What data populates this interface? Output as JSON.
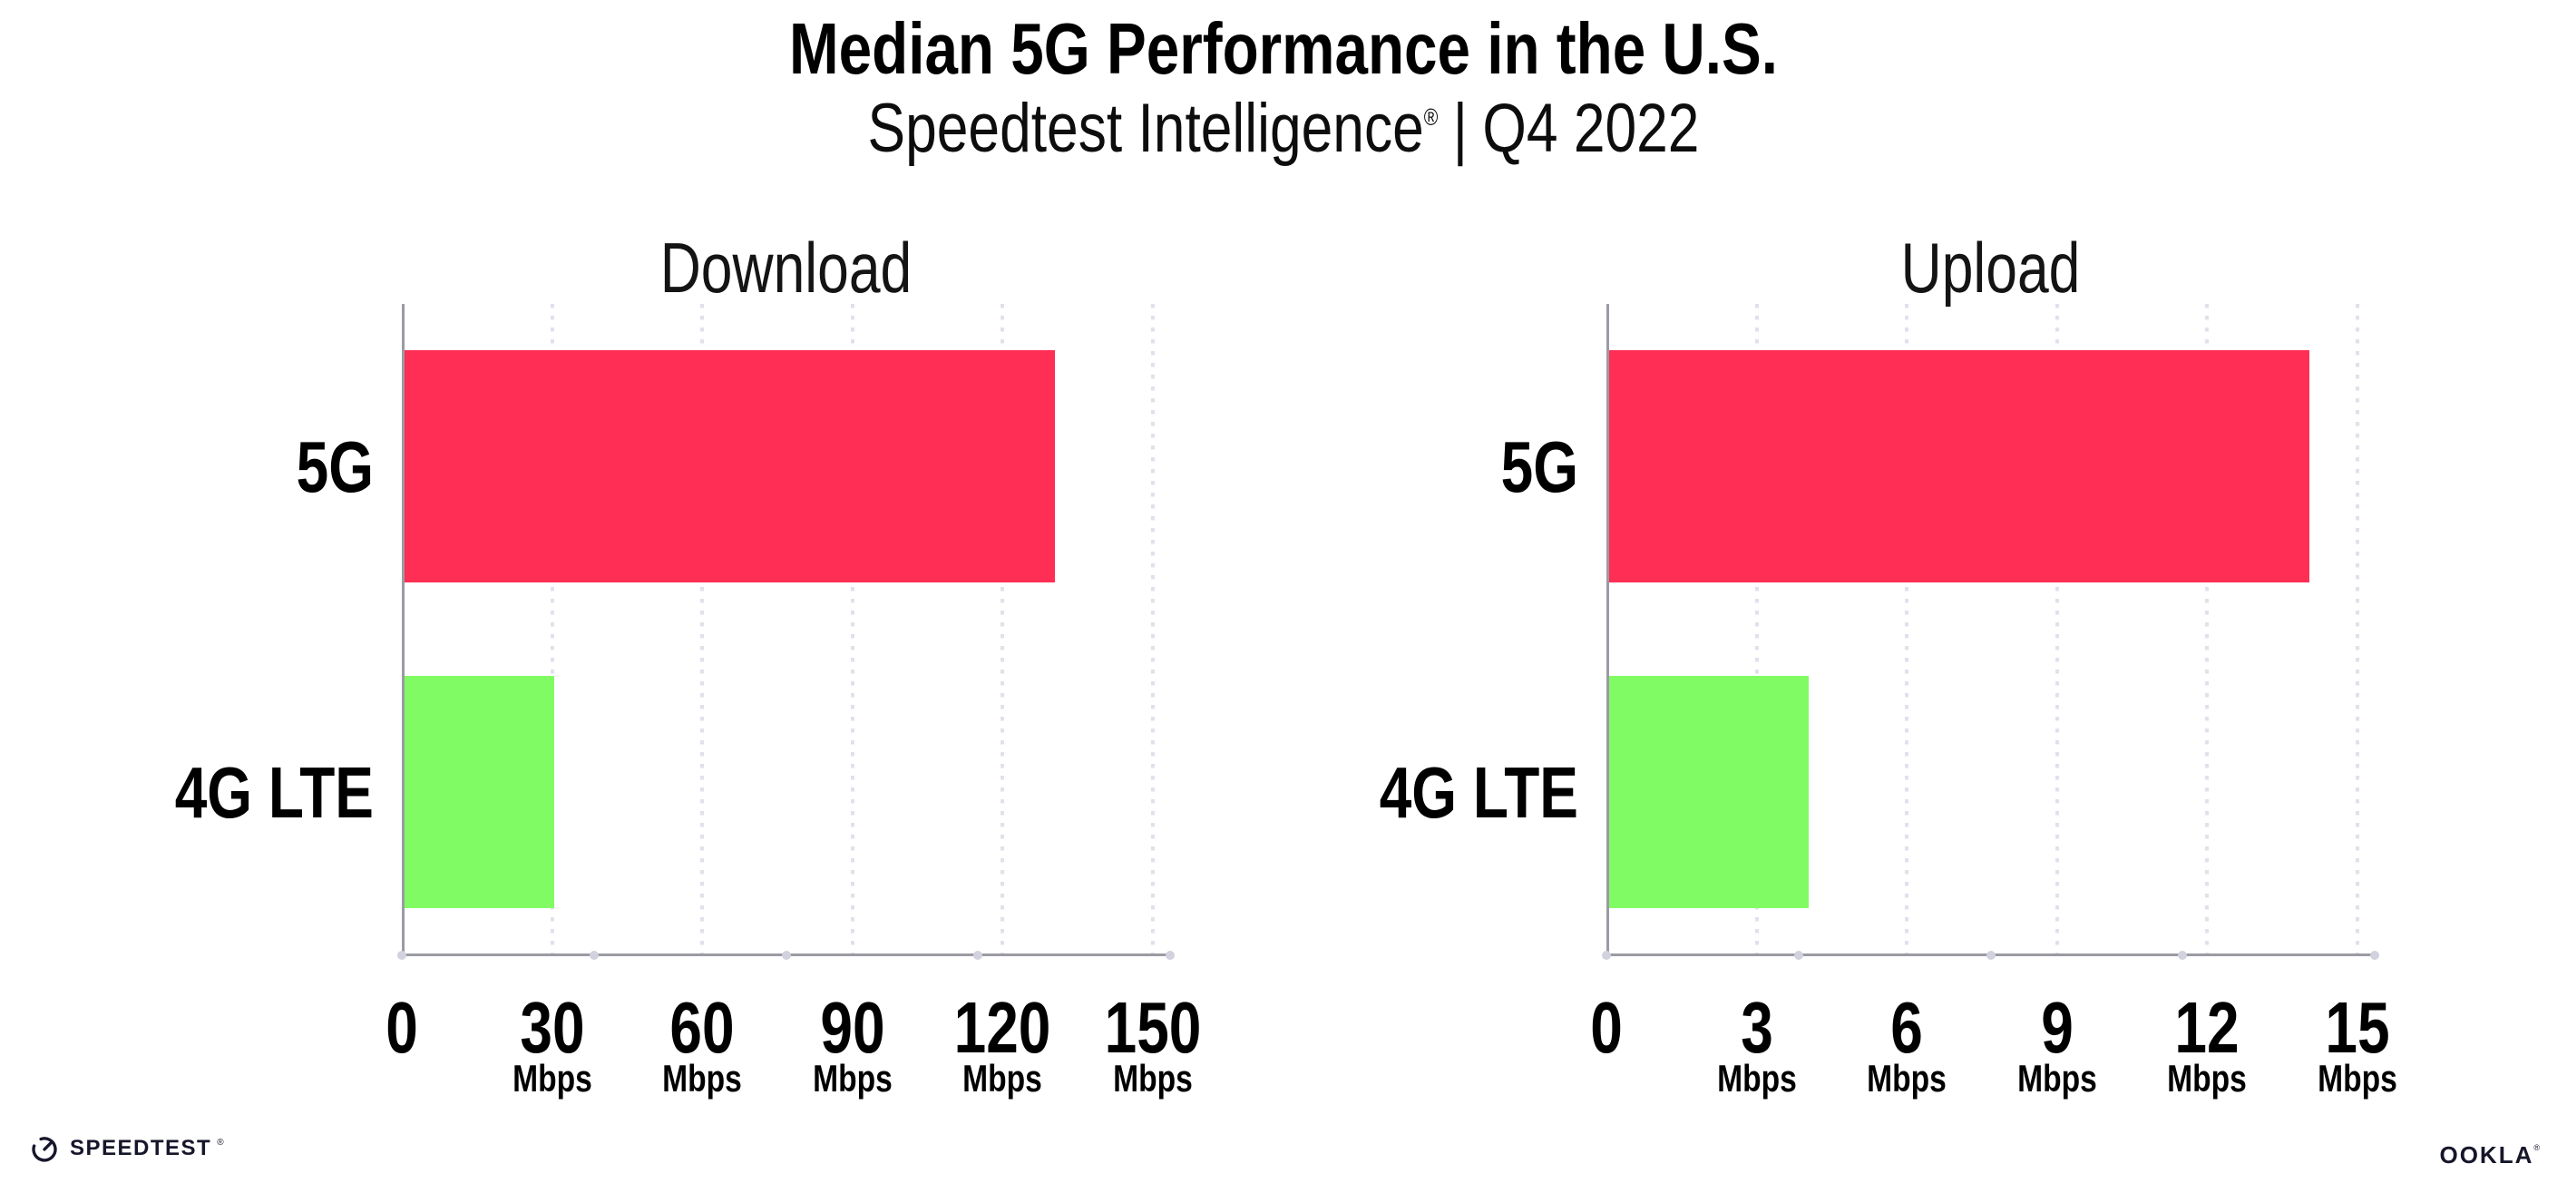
{
  "header": {
    "title": "Median 5G Performance in the U.S.",
    "subtitle": {
      "brand": "Speedtest Intelligence",
      "registered": "®",
      "separator": "|",
      "period": "Q4 2022"
    }
  },
  "chart_data": [
    {
      "type": "bar",
      "orientation": "horizontal",
      "title": "Download",
      "categories": [
        "5G",
        "4G LTE"
      ],
      "values": [
        130,
        30
      ],
      "unit": "Mbps",
      "xlabel": "",
      "ylabel": "",
      "xlim": [
        0,
        150
      ],
      "xticks": [
        0,
        30,
        60,
        90,
        120,
        150
      ],
      "bar_colors": [
        "#FF2E55",
        "#81FB63"
      ],
      "grid": "vertical dotted",
      "legend": false
    },
    {
      "type": "bar",
      "orientation": "horizontal",
      "title": "Upload",
      "categories": [
        "5G",
        "4G LTE"
      ],
      "values": [
        14,
        4
      ],
      "unit": "Mbps",
      "xlabel": "",
      "ylabel": "",
      "xlim": [
        0,
        15
      ],
      "xticks": [
        0,
        3,
        6,
        9,
        12,
        15
      ],
      "bar_colors": [
        "#FF2E55",
        "#81FB63"
      ],
      "grid": "vertical dotted",
      "legend": false
    }
  ],
  "footer": {
    "speedtest_wordmark": "SPEEDTEST",
    "speedtest_registered": "®",
    "ookla_wordmark": "OOKLA",
    "ookla_registered": "®"
  },
  "colors": {
    "bar_5g": "#FF2E55",
    "bar_4g_lte": "#81FB63",
    "axis_line": "#9B9BA3",
    "grid_dot": "#E1E1EC",
    "axis_tick_dot": "#D2D2DF",
    "logo_ink": "#16162B",
    "text": "#000000",
    "background": "#FFFFFF"
  }
}
